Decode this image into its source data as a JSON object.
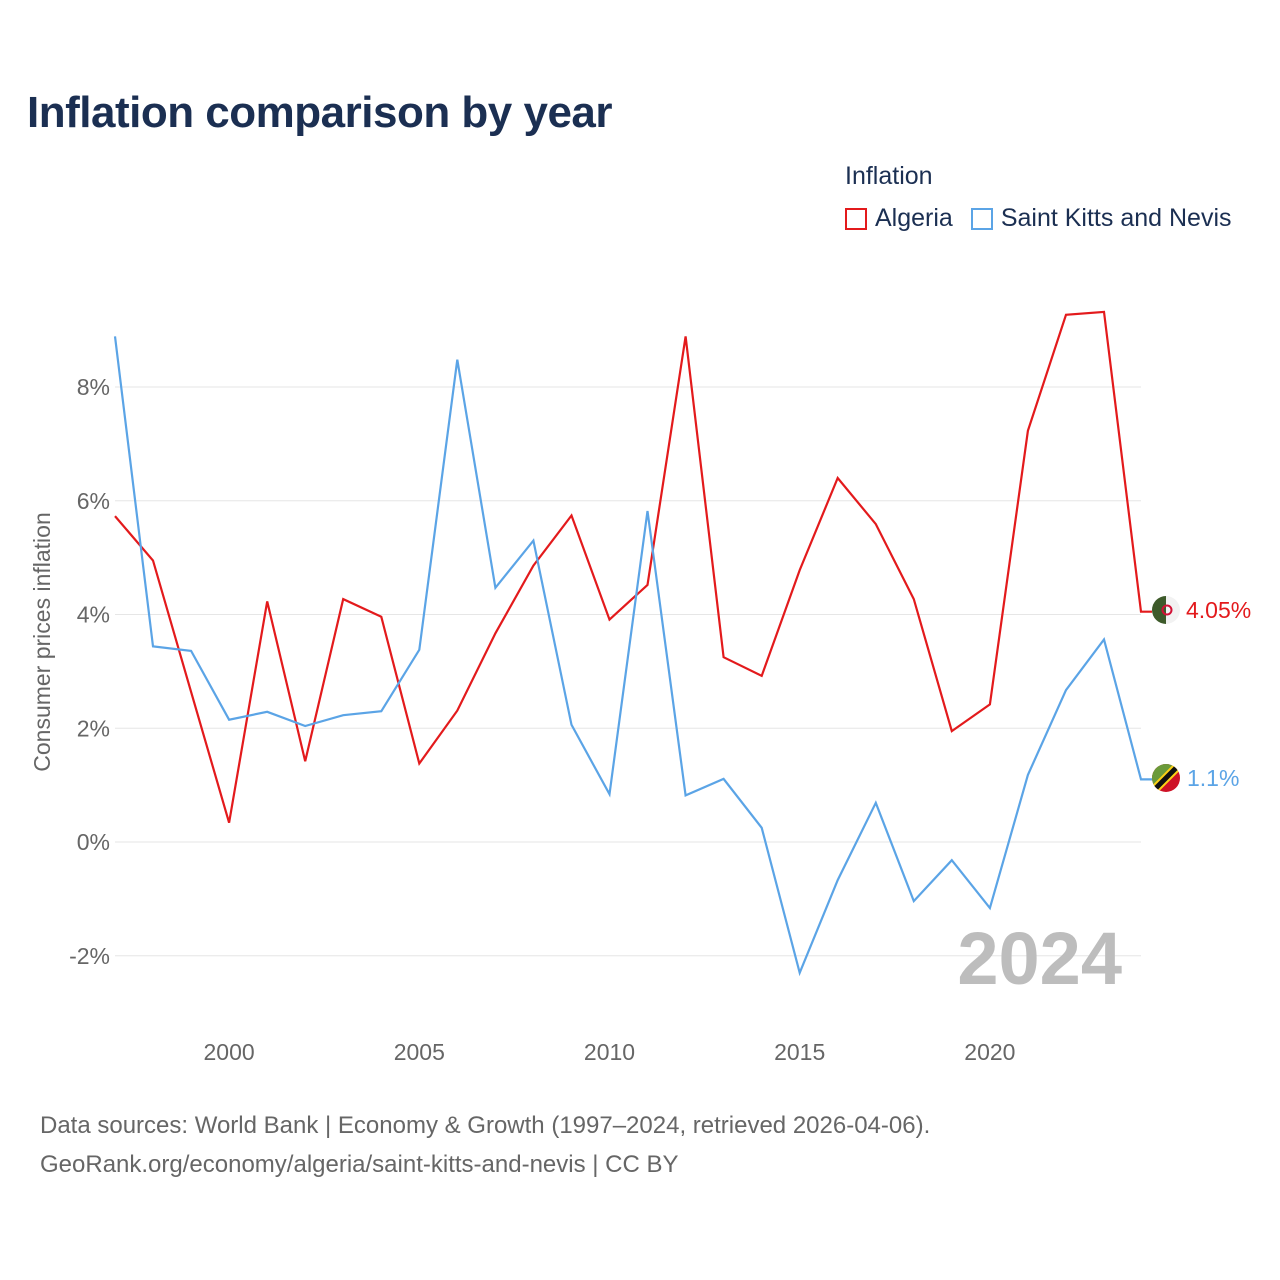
{
  "title": "Inflation comparison by year",
  "legend": {
    "title": "Inflation",
    "items": [
      {
        "label": "Algeria",
        "color": "#e31a1c"
      },
      {
        "label": "Saint Kitts and Nevis",
        "color": "#5ba4e6"
      }
    ]
  },
  "footer": {
    "line1": "Data sources: World Bank | Economy & Growth (1997–2024, retrieved 2026-04-06).",
    "line2": "GeoRank.org/economy/algeria/saint-kitts-and-nevis | CC BY"
  },
  "chart_data": {
    "type": "line",
    "title": "Inflation comparison by year",
    "xlabel": "",
    "ylabel": "Consumer prices inflation",
    "xlim": [
      1997,
      2024
    ],
    "ylim": [
      -2.7,
      9.4
    ],
    "x": [
      1997,
      1998,
      1999,
      2000,
      2001,
      2002,
      2003,
      2004,
      2005,
      2006,
      2007,
      2008,
      2009,
      2010,
      2011,
      2012,
      2013,
      2014,
      2015,
      2016,
      2017,
      2018,
      2019,
      2020,
      2021,
      2022,
      2023,
      2024
    ],
    "x_ticks": [
      2000,
      2005,
      2010,
      2015,
      2020
    ],
    "y_ticks": [
      -2,
      0,
      2,
      4,
      6,
      8
    ],
    "y_tick_labels": [
      "-2%",
      "0%",
      "2%",
      "4%",
      "6%",
      "8%"
    ],
    "series": [
      {
        "name": "Algeria",
        "color": "#e31a1c",
        "end_label": "4.05%",
        "values": [
          5.73,
          4.95,
          2.64,
          0.34,
          4.23,
          1.42,
          4.27,
          3.96,
          1.38,
          2.31,
          3.67,
          4.86,
          5.74,
          3.91,
          4.52,
          8.89,
          3.25,
          2.92,
          4.78,
          6.4,
          5.59,
          4.27,
          1.95,
          2.42,
          7.23,
          9.27,
          9.32,
          4.05
        ]
      },
      {
        "name": "Saint Kitts and Nevis",
        "color": "#5ba4e6",
        "end_label": "1.1%",
        "values": [
          8.89,
          3.44,
          3.36,
          2.15,
          2.29,
          2.04,
          2.23,
          2.3,
          3.38,
          8.48,
          4.47,
          5.3,
          2.06,
          0.84,
          5.82,
          0.82,
          1.11,
          0.25,
          -2.3,
          -0.67,
          0.69,
          -1.04,
          -0.32,
          -1.16,
          1.18,
          2.67,
          3.56,
          1.1
        ]
      }
    ],
    "watermark": "2024",
    "grid": true,
    "legend_position": "top-right"
  }
}
